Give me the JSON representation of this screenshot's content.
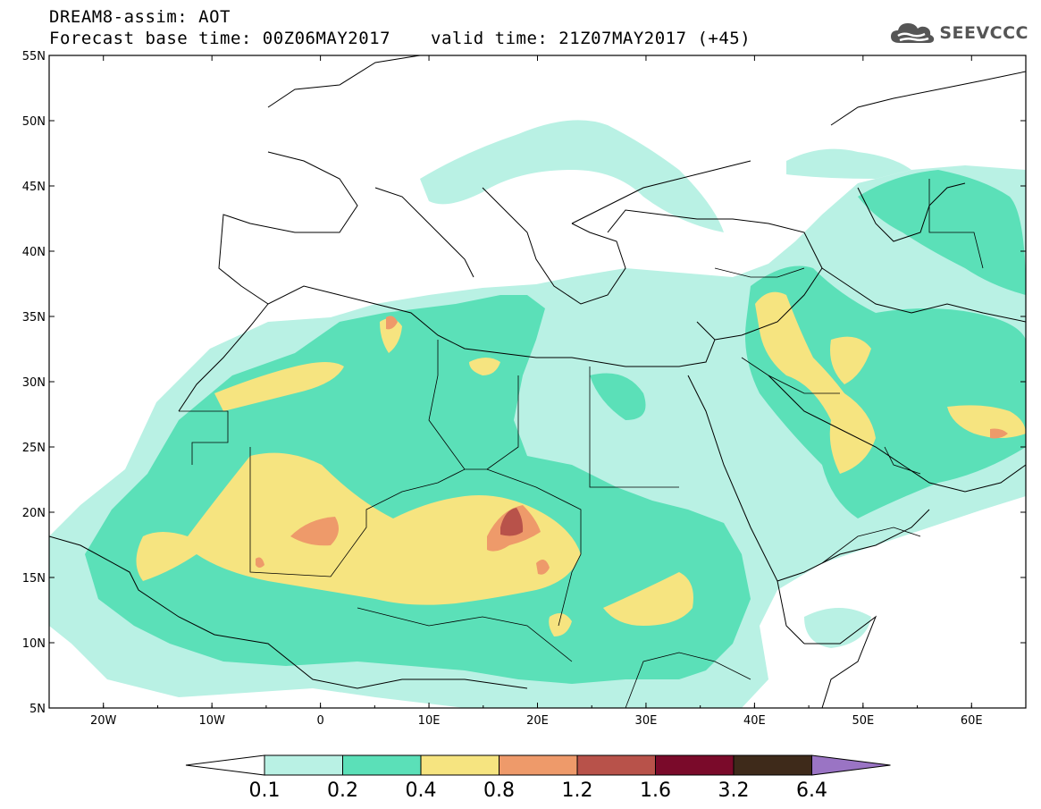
{
  "header": {
    "title_line1": "DREAM8-assim: AOT",
    "title_line2": "Forecast base time: 00Z06MAY2017",
    "valid_time": "valid time: 21Z07MAY2017 (+45)",
    "logo_text": "SEEVCCC"
  },
  "map": {
    "region": "North Africa, Middle East, Southern Europe",
    "lon_range": [
      -25,
      65
    ],
    "lat_range": [
      5,
      55
    ],
    "lat_labels": [
      "55N",
      "50N",
      "45N",
      "40N",
      "35N",
      "30N",
      "25N",
      "20N",
      "15N",
      "10N",
      "5N"
    ],
    "lon_labels": [
      "20W",
      "10W",
      "0",
      "10E",
      "20E",
      "30E",
      "40E",
      "50E",
      "60E"
    ]
  },
  "colorbar": {
    "levels": [
      "0.1",
      "0.2",
      "0.4",
      "0.8",
      "1.2",
      "1.6",
      "3.2",
      "6.4"
    ],
    "colors": [
      "#b9f1e4",
      "#5be0b8",
      "#f6e480",
      "#ee9a6a",
      "#b8524a",
      "#7a0a2a",
      "#3e2a1a",
      "#9a74c4"
    ]
  },
  "colors": {
    "aot_0.1": "#b9f1e4",
    "aot_0.2": "#5be0b8",
    "aot_0.4": "#f6e480",
    "aot_0.8": "#ee9a6a",
    "aot_1.2": "#b8524a",
    "aot_1.6": "#7a0a2a",
    "aot_3.2": "#3e2a1a",
    "aot_6.4": "#9a74c4"
  }
}
